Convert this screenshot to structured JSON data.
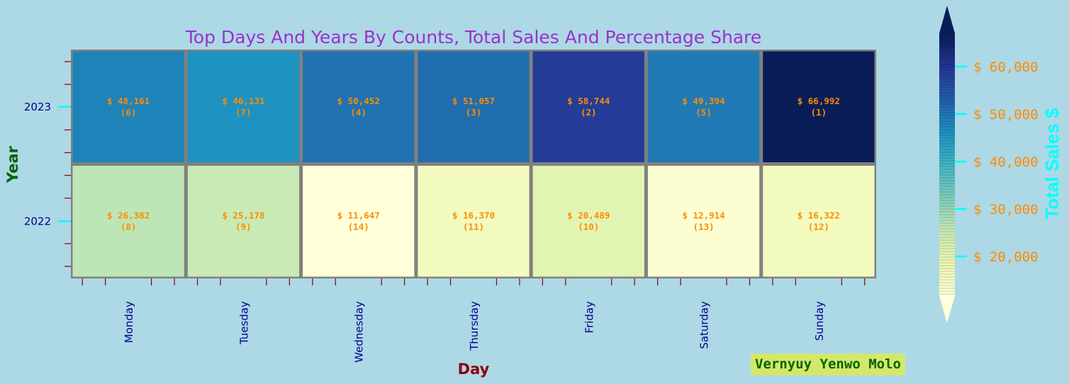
{
  "chart_data": {
    "type": "heatmap",
    "title": "Top Days And Years By Counts, Total Sales And Percentage Share",
    "xlabel": "Day",
    "ylabel": "Year",
    "x_categories": [
      "Monday",
      "Tuesday",
      "Wednesday",
      "Thursday",
      "Friday",
      "Saturday",
      "Sunday"
    ],
    "y_categories": [
      "2023",
      "2022"
    ],
    "values": [
      [
        48161,
        46131,
        50452,
        51057,
        58744,
        49394,
        66992
      ],
      [
        26382,
        25178,
        11647,
        16370,
        20489,
        12914,
        16322
      ]
    ],
    "cell_labels": [
      [
        "$ 48,161",
        "$ 46,131",
        "$ 50,452",
        "$ 51,057",
        "$ 58,744",
        "$ 49,394",
        "$ 66,992"
      ],
      [
        "$ 26,382",
        "$ 25,178",
        "$ 11,647",
        "$ 16,370",
        "$ 20,489",
        "$ 12,914",
        "$ 16,322"
      ]
    ],
    "ranks": [
      [
        "(6)",
        "(7)",
        "(4)",
        "(3)",
        "(2)",
        "(5)",
        "(1)"
      ],
      [
        "(8)",
        "(9)",
        "(14)",
        "(11)",
        "(10)",
        "(13)",
        "(12)"
      ]
    ],
    "colormap": "YlGnBu",
    "colorbar": {
      "label": "Total Sales $",
      "ticks": [
        20000,
        30000,
        40000,
        50000,
        60000
      ],
      "tick_labels": [
        "$ 20,000",
        "$ 30,000",
        "$ 40,000",
        "$ 50,000",
        "$ 60,000"
      ],
      "range": [
        11647,
        66992
      ],
      "extend": "both"
    },
    "colors": {
      "background": "#add8e6",
      "grid": "#808080",
      "cell_text": "#ff8c00",
      "title": "#9932cc"
    }
  },
  "watermark": "Vernyuy Yenwo Molo"
}
